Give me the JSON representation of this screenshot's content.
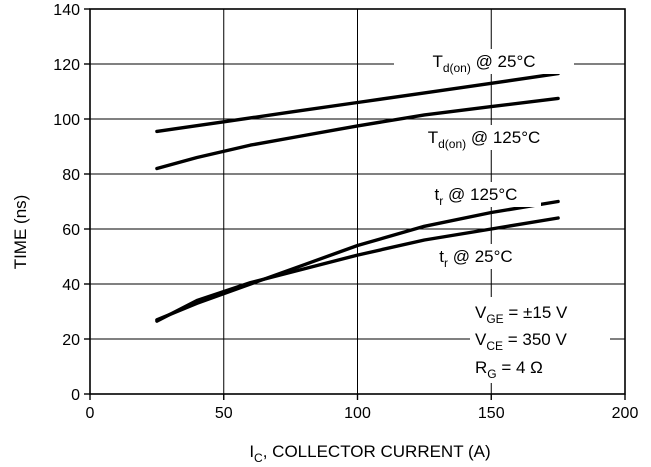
{
  "chart_data": {
    "type": "line",
    "title": "",
    "xlabel": {
      "main": "I",
      "sub": "C",
      "rest": ", COLLECTOR CURRENT (A)"
    },
    "ylabel": "TIME (ns)",
    "xlim": [
      0,
      200
    ],
    "ylim": [
      0,
      140
    ],
    "x_ticks": [
      0,
      50,
      100,
      150,
      200
    ],
    "y_ticks": [
      0,
      20,
      40,
      60,
      80,
      100,
      120,
      140
    ],
    "grid": true,
    "series": [
      {
        "name": "Td(on) @ 25°C",
        "x": [
          25,
          50,
          75,
          100,
          125,
          150,
          175
        ],
        "y": [
          95.5,
          99,
          102.5,
          106,
          109.5,
          113,
          116.5
        ]
      },
      {
        "name": "Td(on) @ 125°C",
        "x": [
          25,
          40,
          60,
          80,
          100,
          125,
          150,
          175
        ],
        "y": [
          82,
          86,
          90.5,
          94,
          97.5,
          101.5,
          104.5,
          107.5
        ]
      },
      {
        "name": "tr @ 125°C",
        "x": [
          25,
          40,
          60,
          80,
          100,
          125,
          150,
          175
        ],
        "y": [
          27,
          33,
          40,
          47,
          54,
          61,
          66,
          70
        ]
      },
      {
        "name": "tr @ 25°C",
        "x": [
          25,
          40,
          60,
          80,
          100,
          125,
          150,
          175
        ],
        "y": [
          26.5,
          34,
          40.5,
          45.5,
          50.5,
          56,
          60,
          64
        ]
      }
    ],
    "series_labels": [
      {
        "main": "T",
        "sub": "d(on)",
        "rest": " @ 25°C"
      },
      {
        "main": "T",
        "sub": "d(on)",
        "rest": " @ 125°C"
      },
      {
        "main": "t",
        "sub": "r",
        "rest": " @ 125°C"
      },
      {
        "main": "t",
        "sub": "r",
        "rest": " @ 25°C"
      }
    ],
    "conditions": [
      {
        "main": "V",
        "sub": "GE",
        "rest": " = ±15 V"
      },
      {
        "main": "V",
        "sub": "CE",
        "rest": " = 350 V"
      },
      {
        "main": "R",
        "sub": "G",
        "rest": " = 4 Ω"
      }
    ]
  }
}
